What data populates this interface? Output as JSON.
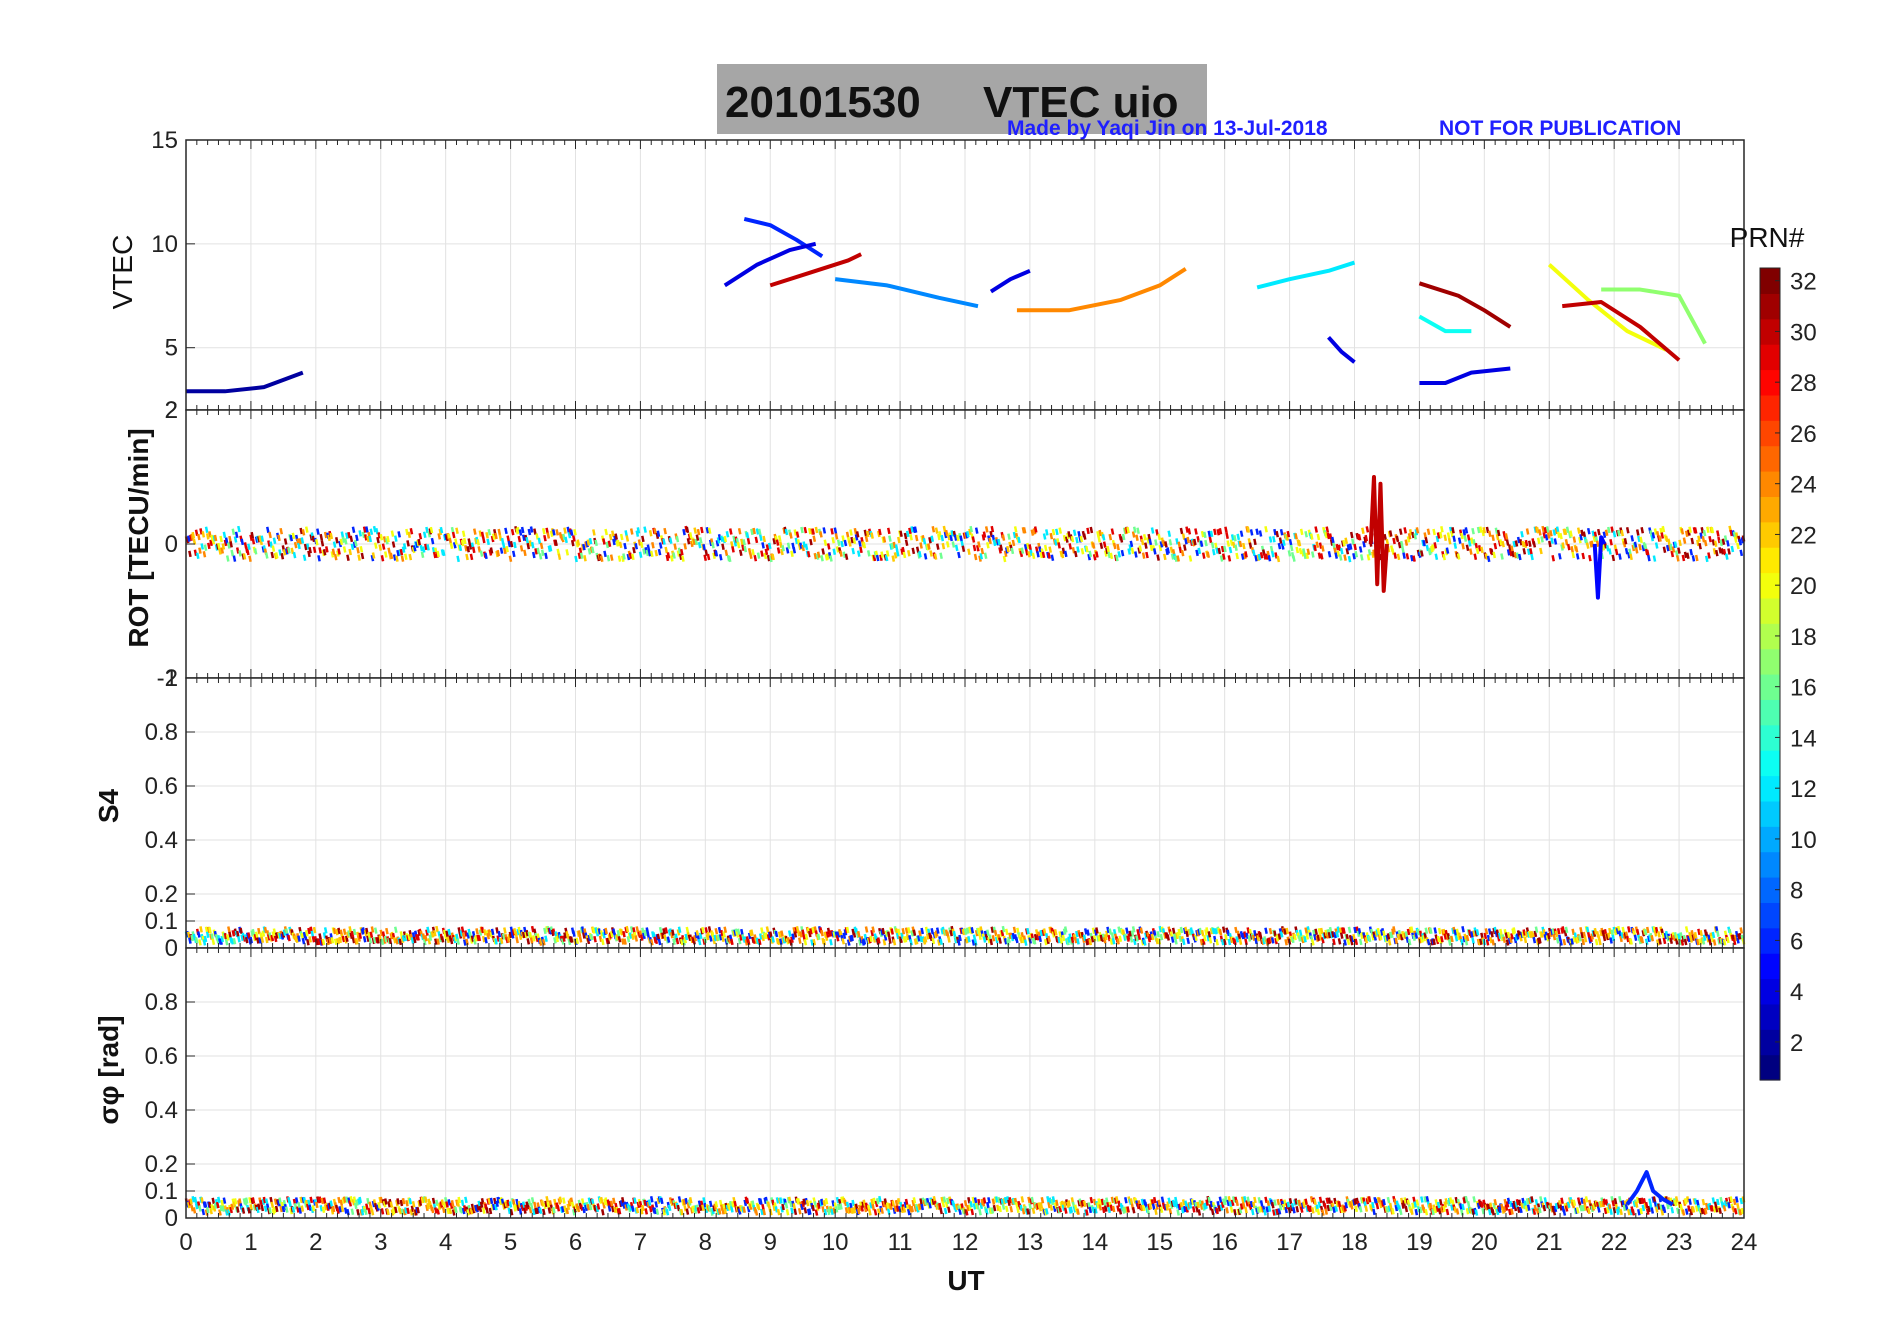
{
  "title": {
    "date": "20101530",
    "label": "VTEC uio"
  },
  "watermark": {
    "author_text": "Made by Yaqi Jin on 13-Jul-2018",
    "notice_text": "NOT FOR PUBLICATION",
    "color": "#1f1fff"
  },
  "title_box_color": "#a6a6a6",
  "colorbar": {
    "label": "PRN#",
    "min": 1,
    "max": 32,
    "ticks": [
      "2",
      "4",
      "6",
      "8",
      "10",
      "12",
      "14",
      "16",
      "18",
      "20",
      "22",
      "24",
      "26",
      "28",
      "30",
      "32"
    ]
  },
  "chart_data": [
    {
      "type": "line",
      "panel": "vtec",
      "ylabel": "VTEC",
      "xlabel": "",
      "xlim": [
        0,
        24
      ],
      "ylim": [
        2,
        15
      ],
      "yticks": [
        2,
        5,
        10,
        15
      ],
      "ytick_labels": [
        "2",
        "5",
        "10",
        "15"
      ],
      "grid": true,
      "series": [
        {
          "prn": 2,
          "x": [
            0.0,
            0.6,
            1.2,
            1.8
          ],
          "y": [
            2.9,
            2.9,
            3.1,
            3.8
          ]
        },
        {
          "prn": 6,
          "x": [
            8.6,
            9.0,
            9.4,
            9.8
          ],
          "y": [
            11.2,
            10.9,
            10.2,
            9.4
          ]
        },
        {
          "prn": 4,
          "x": [
            8.3,
            8.8,
            9.3,
            9.7
          ],
          "y": [
            8.0,
            9.0,
            9.7,
            10.0
          ]
        },
        {
          "prn": 30,
          "x": [
            9.0,
            9.6,
            10.2,
            10.4
          ],
          "y": [
            8.0,
            8.6,
            9.2,
            9.5
          ]
        },
        {
          "prn": 9,
          "x": [
            10.0,
            10.8,
            11.6,
            12.2
          ],
          "y": [
            8.3,
            8.0,
            7.4,
            7.0
          ]
        },
        {
          "prn": 4,
          "x": [
            12.4,
            12.7,
            13.0
          ],
          "y": [
            7.7,
            8.3,
            8.7
          ]
        },
        {
          "prn": 24,
          "x": [
            12.8,
            13.6,
            14.4,
            15.0,
            15.4
          ],
          "y": [
            6.8,
            6.8,
            7.3,
            8.0,
            8.8
          ]
        },
        {
          "prn": 12,
          "x": [
            16.5,
            17.0,
            17.6,
            18.0
          ],
          "y": [
            7.9,
            8.3,
            8.7,
            9.1
          ]
        },
        {
          "prn": 4,
          "x": [
            17.6,
            17.8,
            18.0
          ],
          "y": [
            5.5,
            4.8,
            4.3
          ]
        },
        {
          "prn": 31,
          "x": [
            19.0,
            19.6,
            20.0,
            20.4
          ],
          "y": [
            8.1,
            7.5,
            6.8,
            6.0
          ]
        },
        {
          "prn": 13,
          "x": [
            19.0,
            19.4,
            19.8
          ],
          "y": [
            6.5,
            5.8,
            5.8
          ]
        },
        {
          "prn": 4,
          "x": [
            19.0,
            19.4,
            19.8,
            20.4
          ],
          "y": [
            3.3,
            3.3,
            3.8,
            4.0
          ]
        },
        {
          "prn": 20,
          "x": [
            21.0,
            21.6,
            22.2,
            22.8
          ],
          "y": [
            9.0,
            7.3,
            5.8,
            4.9
          ]
        },
        {
          "prn": 17,
          "x": [
            21.8,
            22.4,
            23.0,
            23.4
          ],
          "y": [
            7.8,
            7.8,
            7.5,
            5.2
          ]
        },
        {
          "prn": 30,
          "x": [
            21.2,
            21.8,
            22.4,
            23.0
          ],
          "y": [
            7.0,
            7.2,
            6.0,
            4.4
          ]
        }
      ]
    },
    {
      "type": "line",
      "panel": "rot",
      "ylabel": "ROT [TECU/min]",
      "xlabel": "",
      "xlim": [
        0,
        24
      ],
      "ylim": [
        -2,
        2
      ],
      "yticks": [
        -2,
        0,
        2
      ],
      "ytick_labels": [
        "-2",
        "0",
        "2"
      ],
      "grid": true,
      "series": [
        {
          "prn": 30,
          "x": [
            18.25,
            18.3,
            18.35,
            18.4,
            18.45,
            18.5
          ],
          "y": [
            0.0,
            1.0,
            -0.6,
            0.9,
            -0.7,
            0.0
          ]
        },
        {
          "prn": 5,
          "x": [
            21.7,
            21.75,
            21.8,
            21.85
          ],
          "y": [
            0.0,
            -0.8,
            0.1,
            0.0
          ]
        }
      ]
    },
    {
      "type": "line",
      "panel": "s4",
      "ylabel": "S4",
      "xlabel": "",
      "xlim": [
        0,
        24
      ],
      "ylim": [
        0,
        1
      ],
      "yticks": [
        0,
        0.1,
        0.2,
        0.4,
        0.6,
        0.8,
        1
      ],
      "ytick_labels": [
        "0",
        "0.1",
        "0.2",
        "0.4",
        "0.6",
        "0.8",
        "1"
      ],
      "grid": true,
      "series": []
    },
    {
      "type": "line",
      "panel": "sigma_phi",
      "ylabel": "σφ [rad]",
      "xlabel": "UT",
      "xlim": [
        0,
        24
      ],
      "ylim": [
        0,
        1
      ],
      "yticks": [
        0,
        0.1,
        0.2,
        0.4,
        0.6,
        0.8
      ],
      "ytick_labels": [
        "0",
        "0.1",
        "0.2",
        "0.4",
        "0.6",
        "0.8"
      ],
      "xticks": [
        0,
        1,
        2,
        3,
        4,
        5,
        6,
        7,
        8,
        9,
        10,
        11,
        12,
        13,
        14,
        15,
        16,
        17,
        18,
        19,
        20,
        21,
        22,
        23,
        24
      ],
      "xtick_labels": [
        "0",
        "1",
        "2",
        "3",
        "4",
        "5",
        "6",
        "7",
        "8",
        "9",
        "10",
        "11",
        "12",
        "13",
        "14",
        "15",
        "16",
        "17",
        "18",
        "19",
        "20",
        "21",
        "22",
        "23",
        "24"
      ],
      "grid": true,
      "series": [
        {
          "prn": 6,
          "x": [
            22.2,
            22.35,
            22.5,
            22.6,
            22.75,
            22.9
          ],
          "y": [
            0.05,
            0.1,
            0.17,
            0.1,
            0.07,
            0.05
          ]
        }
      ]
    }
  ]
}
